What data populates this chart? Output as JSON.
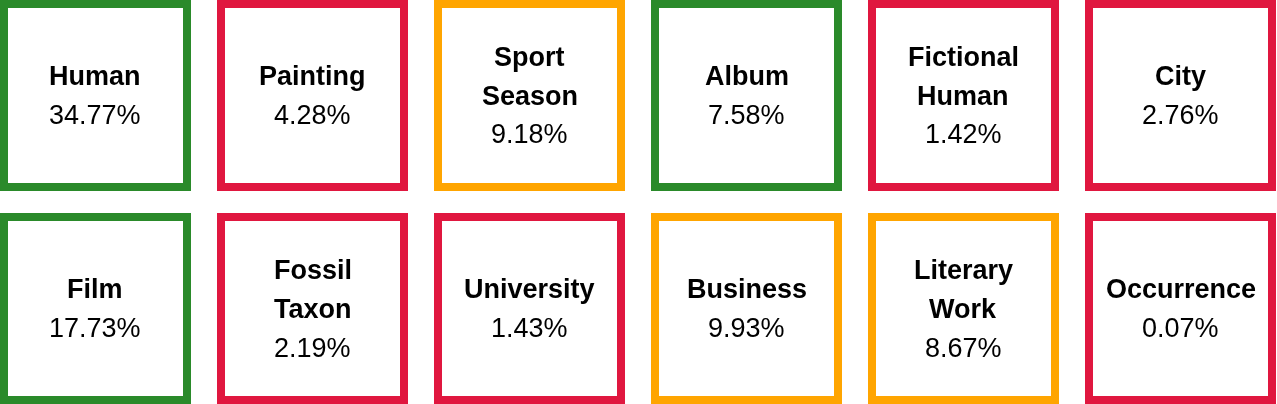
{
  "chart_data": {
    "type": "other",
    "categories": [
      "Human",
      "Painting",
      "Sport Season",
      "Album",
      "Fictional Human",
      "City",
      "Film",
      "Fossil Taxon",
      "University",
      "Business",
      "Literary Work",
      "Occurrence"
    ],
    "values": [
      34.77,
      4.28,
      9.18,
      7.58,
      1.42,
      2.76,
      17.73,
      2.19,
      1.43,
      9.93,
      8.67,
      0.07
    ],
    "value_labels": [
      "34.77%",
      "4.28%",
      "9.18%",
      "7.58%",
      "1.42%",
      "2.76%",
      "17.73%",
      "2.19%",
      "1.43%",
      "9.93%",
      "8.67%",
      "0.07%"
    ],
    "colors": [
      "#2a8a2a",
      "#e0173f",
      "#ffa500",
      "#2a8a2a",
      "#e0173f",
      "#e0173f",
      "#2a8a2a",
      "#e0173f",
      "#e0173f",
      "#ffa500",
      "#ffa500",
      "#e0173f"
    ]
  }
}
